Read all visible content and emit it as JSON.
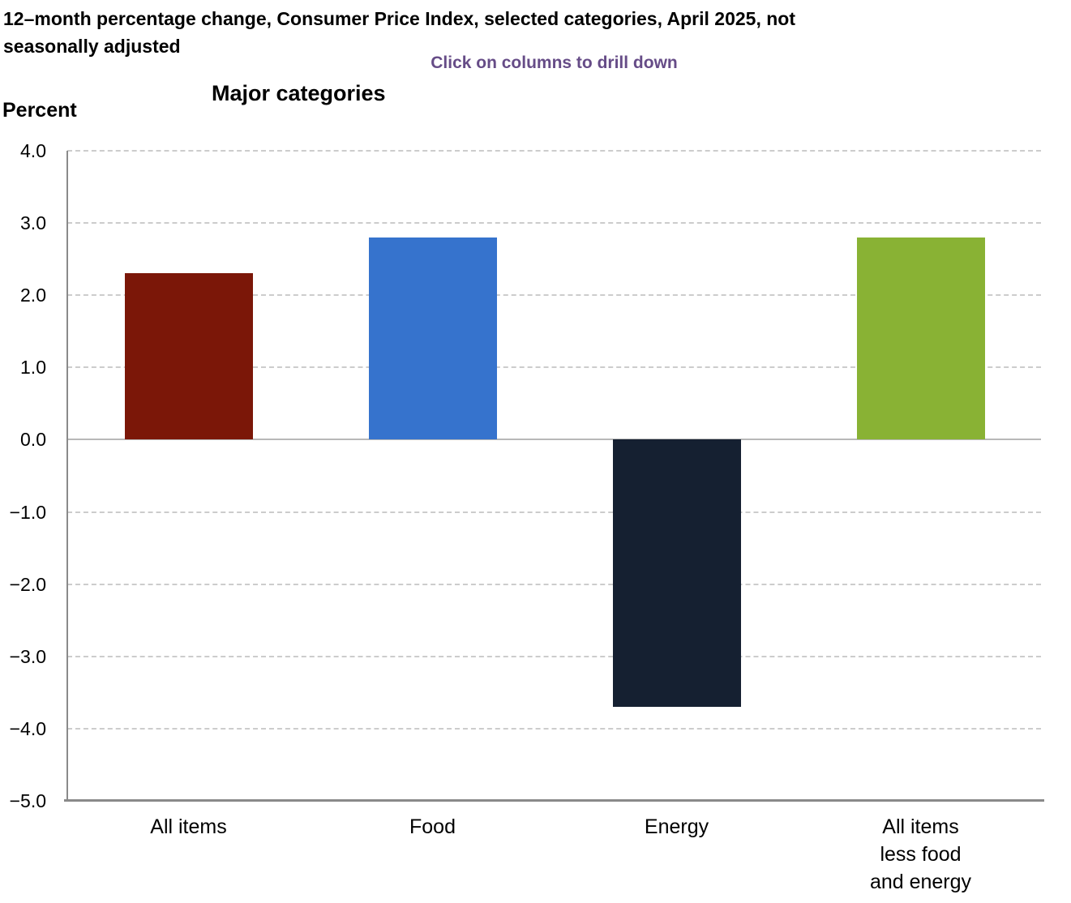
{
  "page": {
    "title": "12–month percentage change, Consumer Price Index, selected categories, April 2025, not\nseasonally adjusted",
    "subtitle": "Click on columns to drill down",
    "percent_label": "Percent",
    "chart_heading": "Major categories"
  },
  "chart_data": {
    "type": "bar",
    "title": "Major categories",
    "ylabel": "Percent",
    "categories": [
      "All items",
      "Food",
      "Energy",
      "All items\nless food\nand energy"
    ],
    "values": [
      2.3,
      2.8,
      -3.7,
      2.8
    ],
    "bar_colors": [
      "#7b1708",
      "#3673cd",
      "#152031",
      "#89b234"
    ],
    "ylim": [
      -5.0,
      4.0
    ],
    "yticks": [
      4.0,
      3.0,
      2.0,
      1.0,
      0.0,
      -1.0,
      -2.0,
      -3.0,
      -4.0,
      -5.0
    ],
    "grid": "horizontal-dashed",
    "legend": "none"
  },
  "colors": {
    "subtitle_purple": "#664c87",
    "axis_gray": "#8a8a8a",
    "gridline_gray": "#cccccc",
    "zero_line_gray": "#b8b8b8",
    "text_black": "#000000"
  }
}
